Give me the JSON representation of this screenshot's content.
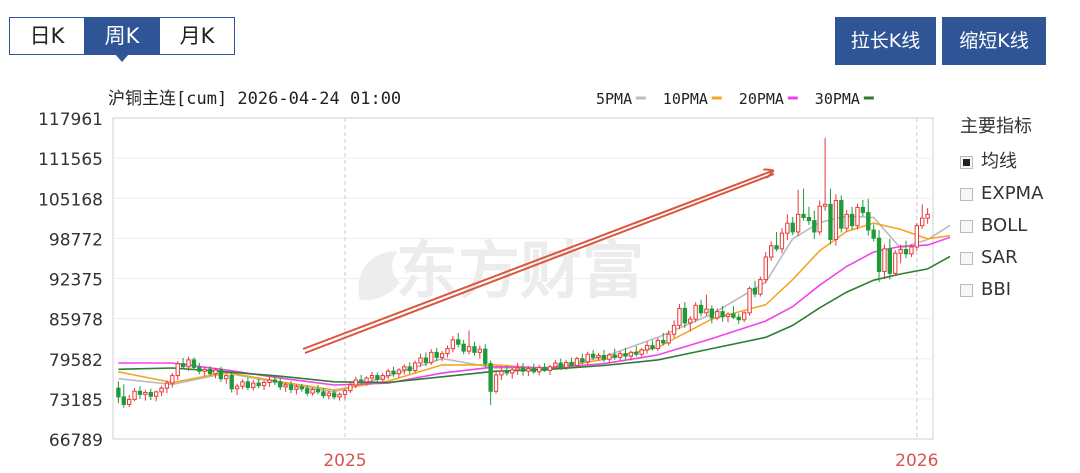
{
  "tabs": [
    {
      "label": "日K"
    },
    {
      "label": "周K"
    },
    {
      "label": "月K"
    }
  ],
  "buttons": {
    "stretch": "拉长K线",
    "shrink": "缩短K线"
  },
  "chart_info": "沪铜主连[cum] 2026-04-24 01:00",
  "legend": [
    {
      "label": "5PMA",
      "color": "#bbbbbb"
    },
    {
      "label": "10PMA",
      "color": "#f5a623"
    },
    {
      "label": "20PMA",
      "color": "#ee44ee"
    },
    {
      "label": "30PMA",
      "color": "#2e7d32"
    }
  ],
  "indicators": {
    "title": "主要指标",
    "items": [
      {
        "label": "均线",
        "checked": true
      },
      {
        "label": "EXPMA",
        "checked": false
      },
      {
        "label": "BOLL",
        "checked": false
      },
      {
        "label": "SAR",
        "checked": false
      },
      {
        "label": "BBI",
        "checked": false
      }
    ]
  },
  "watermark": "东方财富",
  "chart_data": {
    "type": "candlestick",
    "title": "沪铜主连[cum] 2026-04-24 01:00",
    "ylim": [
      66789,
      117961
    ],
    "yticks": [
      117961,
      111565,
      105168,
      98772,
      92375,
      85978,
      79582,
      73185,
      66789
    ],
    "xticks": [
      {
        "label": "2025",
        "index": 42
      },
      {
        "label": "2026",
        "index": 148
      }
    ],
    "colors": {
      "up": "#e8393a",
      "down": "#1f9a3a"
    },
    "candles": [
      [
        74900,
        76000,
        72500,
        73500
      ],
      [
        73500,
        75500,
        71800,
        72300
      ],
      [
        72300,
        73800,
        71900,
        73100
      ],
      [
        73100,
        74900,
        72800,
        74400
      ],
      [
        74400,
        75200,
        73200,
        73900
      ],
      [
        73900,
        74600,
        72900,
        74200
      ],
      [
        74200,
        74800,
        73000,
        73600
      ],
      [
        73600,
        74500,
        72800,
        74300
      ],
      [
        74300,
        75300,
        73600,
        74900
      ],
      [
        74900,
        76100,
        74100,
        75700
      ],
      [
        75700,
        77300,
        75000,
        76900
      ],
      [
        76900,
        79200,
        76200,
        78800
      ],
      [
        78800,
        79700,
        77900,
        78300
      ],
      [
        78300,
        79900,
        77600,
        79400
      ],
      [
        79400,
        79800,
        77900,
        78200
      ],
      [
        78200,
        78900,
        77100,
        77600
      ],
      [
        77600,
        78300,
        76800,
        77900
      ],
      [
        77900,
        78400,
        76900,
        77200
      ],
      [
        77200,
        78100,
        76500,
        77800
      ],
      [
        77800,
        78300,
        75900,
        76400
      ],
      [
        76400,
        77200,
        75600,
        76900
      ],
      [
        76900,
        77400,
        74200,
        74800
      ],
      [
        74800,
        75600,
        73800,
        75200
      ],
      [
        75200,
        76300,
        74700,
        75900
      ],
      [
        75900,
        76600,
        74600,
        75000
      ],
      [
        75000,
        76200,
        74500,
        75700
      ],
      [
        75700,
        76400,
        74900,
        75300
      ],
      [
        75300,
        76100,
        74600,
        75800
      ],
      [
        75800,
        76800,
        75100,
        76200
      ],
      [
        76200,
        76800,
        75400,
        75900
      ],
      [
        75900,
        76600,
        74600,
        75100
      ],
      [
        75100,
        75800,
        74300,
        75400
      ],
      [
        75400,
        76000,
        74100,
        74700
      ],
      [
        74700,
        75500,
        73900,
        75100
      ],
      [
        75100,
        75600,
        74300,
        74800
      ],
      [
        74800,
        75400,
        73600,
        74100
      ],
      [
        74100,
        75000,
        73700,
        74700
      ],
      [
        74700,
        75400,
        73900,
        74300
      ],
      [
        74300,
        74900,
        73300,
        73700
      ],
      [
        73700,
        74500,
        73100,
        74100
      ],
      [
        74100,
        74600,
        73100,
        73500
      ],
      [
        73500,
        74200,
        72900,
        73900
      ],
      [
        73900,
        74800,
        73100,
        74500
      ],
      [
        74500,
        75900,
        74100,
        75400
      ],
      [
        75400,
        76700,
        74900,
        76200
      ],
      [
        76200,
        77000,
        75500,
        75900
      ],
      [
        75900,
        76800,
        75300,
        76500
      ],
      [
        76500,
        77500,
        75800,
        76900
      ],
      [
        76900,
        77400,
        75900,
        76300
      ],
      [
        76300,
        77300,
        75700,
        76900
      ],
      [
        76900,
        78000,
        76300,
        77600
      ],
      [
        77600,
        78300,
        76700,
        77200
      ],
      [
        77200,
        78100,
        76600,
        77800
      ],
      [
        77800,
        78700,
        77100,
        78300
      ],
      [
        78300,
        79000,
        77200,
        77700
      ],
      [
        77700,
        79300,
        77300,
        78900
      ],
      [
        78900,
        80400,
        78300,
        79700
      ],
      [
        79700,
        80600,
        78400,
        79000
      ],
      [
        79000,
        81100,
        78600,
        80600
      ],
      [
        80600,
        81300,
        79200,
        79800
      ],
      [
        79800,
        80800,
        79200,
        80400
      ],
      [
        80400,
        81700,
        79800,
        81200
      ],
      [
        81200,
        83200,
        80600,
        82600
      ],
      [
        82600,
        83700,
        81400,
        81900
      ],
      [
        81900,
        82600,
        80300,
        80800
      ],
      [
        80800,
        84100,
        80300,
        81500
      ],
      [
        81500,
        82300,
        80100,
        80600
      ],
      [
        80600,
        81700,
        79600,
        81100
      ],
      [
        81100,
        81900,
        78200,
        78800
      ],
      [
        78800,
        79300,
        72200,
        74400
      ],
      [
        74400,
        77500,
        74000,
        77000
      ],
      [
        77000,
        78300,
        76200,
        77600
      ],
      [
        77600,
        78500,
        76900,
        77300
      ],
      [
        77300,
        78100,
        76400,
        77800
      ],
      [
        77800,
        78900,
        77000,
        78100
      ],
      [
        78100,
        78900,
        76900,
        77600
      ],
      [
        77600,
        78400,
        76800,
        78000
      ],
      [
        78000,
        78800,
        77200,
        77500
      ],
      [
        77500,
        78600,
        76900,
        78200
      ],
      [
        78200,
        78900,
        77500,
        77700
      ],
      [
        77700,
        78600,
        77000,
        78300
      ],
      [
        78300,
        79400,
        77900,
        78900
      ],
      [
        78900,
        79600,
        77800,
        78200
      ],
      [
        78200,
        79400,
        77800,
        79000
      ],
      [
        79000,
        79800,
        78400,
        78500
      ],
      [
        78500,
        79900,
        78200,
        79600
      ],
      [
        79600,
        80400,
        78700,
        79100
      ],
      [
        79100,
        80700,
        78600,
        80300
      ],
      [
        80300,
        81000,
        79400,
        79800
      ],
      [
        79800,
        80500,
        79300,
        80100
      ],
      [
        80100,
        81000,
        79000,
        79500
      ],
      [
        79500,
        80500,
        78900,
        80200
      ],
      [
        80200,
        81200,
        79400,
        79800
      ],
      [
        79800,
        80800,
        79300,
        80400
      ],
      [
        80400,
        81300,
        79500,
        80000
      ],
      [
        80000,
        80900,
        79300,
        80600
      ],
      [
        80600,
        81600,
        79900,
        80300
      ],
      [
        80300,
        81300,
        79800,
        81000
      ],
      [
        81000,
        82300,
        80400,
        81700
      ],
      [
        81700,
        82500,
        80900,
        81200
      ],
      [
        81200,
        82900,
        80800,
        82500
      ],
      [
        82500,
        83700,
        81700,
        82100
      ],
      [
        82100,
        84100,
        81700,
        83500
      ],
      [
        83500,
        85700,
        82900,
        84900
      ],
      [
        84900,
        88300,
        84300,
        87600
      ],
      [
        87600,
        88600,
        84500,
        85300
      ],
      [
        85300,
        86400,
        83900,
        85900
      ],
      [
        85900,
        88600,
        85400,
        88100
      ],
      [
        88100,
        89000,
        86300,
        86900
      ],
      [
        86900,
        89800,
        86400,
        87500
      ],
      [
        87500,
        88100,
        85200,
        86100
      ],
      [
        86100,
        87600,
        85700,
        87100
      ],
      [
        87100,
        88000,
        85500,
        86300
      ],
      [
        86300,
        87000,
        85400,
        86700
      ],
      [
        86700,
        88000,
        85900,
        86200
      ],
      [
        86200,
        86800,
        85100,
        85800
      ],
      [
        85800,
        87200,
        85400,
        86900
      ],
      [
        86900,
        91100,
        86400,
        90800
      ],
      [
        90800,
        92000,
        89400,
        89900
      ],
      [
        89900,
        92700,
        89500,
        92200
      ],
      [
        92200,
        96600,
        91600,
        95800
      ],
      [
        95800,
        98300,
        95200,
        97600
      ],
      [
        97600,
        99800,
        96700,
        97100
      ],
      [
        97100,
        100400,
        96400,
        99600
      ],
      [
        99600,
        102600,
        98500,
        101200
      ],
      [
        101200,
        102200,
        99300,
        99800
      ],
      [
        99800,
        106500,
        99100,
        102600
      ],
      [
        102600,
        106700,
        101600,
        102100
      ],
      [
        102100,
        103800,
        100900,
        101600
      ],
      [
        101600,
        103200,
        98700,
        99800
      ],
      [
        99800,
        104800,
        99300,
        103900
      ],
      [
        103900,
        114800,
        103200,
        104200
      ],
      [
        104200,
        106700,
        97800,
        98600
      ],
      [
        98600,
        105800,
        97600,
        104800
      ],
      [
        104800,
        105600,
        99700,
        100400
      ],
      [
        100400,
        103300,
        99900,
        102600
      ],
      [
        102600,
        103800,
        100100,
        100800
      ],
      [
        100800,
        104300,
        100200,
        103700
      ],
      [
        103700,
        104900,
        102300,
        102900
      ],
      [
        102900,
        105100,
        99200,
        100100
      ],
      [
        100100,
        101000,
        98300,
        98800
      ],
      [
        98800,
        100100,
        91800,
        93500
      ],
      [
        93500,
        97800,
        92300,
        97100
      ],
      [
        97100,
        98700,
        92200,
        93200
      ],
      [
        93200,
        96900,
        92800,
        96400
      ],
      [
        96400,
        97800,
        94800,
        97000
      ],
      [
        97000,
        98400,
        95600,
        96300
      ],
      [
        96300,
        97800,
        95800,
        97400
      ],
      [
        97400,
        101200,
        96800,
        100800
      ],
      [
        100800,
        104200,
        100300,
        102000
      ],
      [
        102000,
        103600,
        101100,
        102600
      ]
    ],
    "ma": {
      "5PMA": [
        [
          0,
          76400
        ],
        [
          10,
          75500
        ],
        [
          20,
          77300
        ],
        [
          30,
          75700
        ],
        [
          40,
          74300
        ],
        [
          50,
          76800
        ],
        [
          60,
          79600
        ],
        [
          70,
          78100
        ],
        [
          80,
          78200
        ],
        [
          90,
          79900
        ],
        [
          100,
          83000
        ],
        [
          110,
          86700
        ],
        [
          120,
          91800
        ],
        [
          125,
          98700
        ],
        [
          130,
          101300
        ],
        [
          135,
          102300
        ],
        [
          140,
          102100
        ],
        [
          145,
          97200
        ],
        [
          150,
          98600
        ],
        [
          155,
          101300
        ]
      ],
      "10PMA": [
        [
          0,
          77500
        ],
        [
          10,
          75800
        ],
        [
          20,
          77400
        ],
        [
          30,
          75900
        ],
        [
          40,
          74600
        ],
        [
          50,
          76000
        ],
        [
          60,
          78600
        ],
        [
          70,
          78600
        ],
        [
          80,
          78000
        ],
        [
          90,
          79500
        ],
        [
          100,
          81400
        ],
        [
          110,
          85900
        ],
        [
          120,
          88200
        ],
        [
          125,
          92200
        ],
        [
          130,
          96800
        ],
        [
          135,
          99900
        ],
        [
          140,
          101200
        ],
        [
          145,
          100200
        ],
        [
          150,
          98700
        ],
        [
          155,
          99300
        ]
      ],
      "20PMA": [
        [
          0,
          78900
        ],
        [
          10,
          78900
        ],
        [
          20,
          77800
        ],
        [
          30,
          76500
        ],
        [
          40,
          75400
        ],
        [
          50,
          75700
        ],
        [
          60,
          77300
        ],
        [
          70,
          78300
        ],
        [
          80,
          78100
        ],
        [
          90,
          78800
        ],
        [
          100,
          80200
        ],
        [
          110,
          82800
        ],
        [
          120,
          85600
        ],
        [
          125,
          87900
        ],
        [
          130,
          91300
        ],
        [
          135,
          94300
        ],
        [
          140,
          96600
        ],
        [
          145,
          97500
        ],
        [
          150,
          97700
        ],
        [
          155,
          99200
        ]
      ],
      "30PMA": [
        [
          0,
          77900
        ],
        [
          10,
          78100
        ],
        [
          20,
          77500
        ],
        [
          30,
          76800
        ],
        [
          40,
          75900
        ],
        [
          50,
          75800
        ],
        [
          60,
          76700
        ],
        [
          70,
          77600
        ],
        [
          80,
          77900
        ],
        [
          90,
          78500
        ],
        [
          100,
          79400
        ],
        [
          110,
          81200
        ],
        [
          120,
          83000
        ],
        [
          125,
          84900
        ],
        [
          130,
          87700
        ],
        [
          135,
          90200
        ],
        [
          140,
          92100
        ],
        [
          145,
          93100
        ],
        [
          150,
          93900
        ],
        [
          155,
          96300
        ]
      ]
    }
  }
}
